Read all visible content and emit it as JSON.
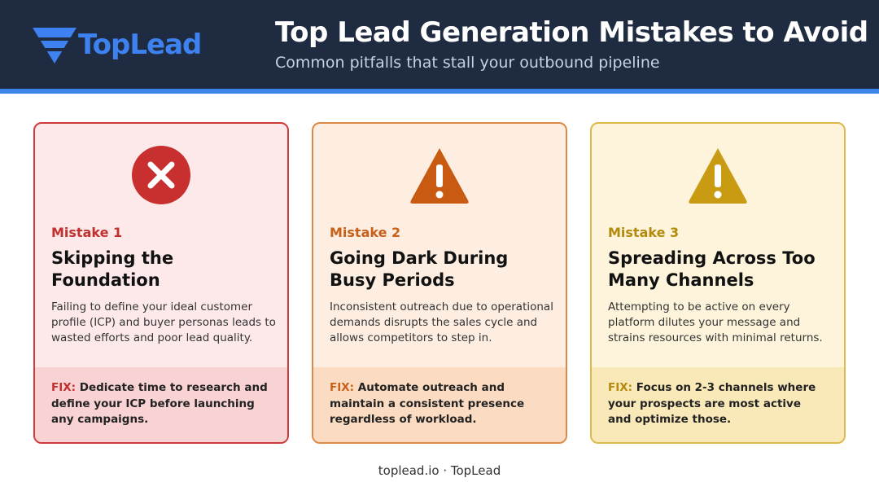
{
  "header": {
    "logo": "TopLead",
    "title": "Top Lead Generation Mistakes to Avoid",
    "subtitle": "Common pitfalls that stall your outbound pipeline"
  },
  "cards": [
    {
      "label": "Mistake 1",
      "heading_lines": [
        "Skipping the",
        "Foundation"
      ],
      "body": "Failing to define your ideal customer profile (ICP) and buyer personas leads to wasted efforts and poor lead quality.",
      "fix_label": "FIX:",
      "fix": "Dedicate time to research and define your ICP before launching any campaigns."
    },
    {
      "label": "Mistake 2",
      "heading_lines": [
        "Going Dark During",
        "Busy Periods"
      ],
      "body": "Inconsistent outreach due to operational demands disrupts the sales cycle and allows competitors to step in.",
      "fix_label": "FIX:",
      "fix": "Automate outreach and maintain a consistent presence regardless of workload."
    },
    {
      "label": "Mistake 3",
      "heading_lines": [
        "Spreading Across Too",
        "Many Channels"
      ],
      "body": "Attempting to be active on every platform dilutes your message and strains resources with minimal returns.",
      "fix_label": "FIX:",
      "fix": "Focus on 2-3 channels where your prospects are most active and optimize those."
    }
  ],
  "footer": "toplead.io · TopLead"
}
